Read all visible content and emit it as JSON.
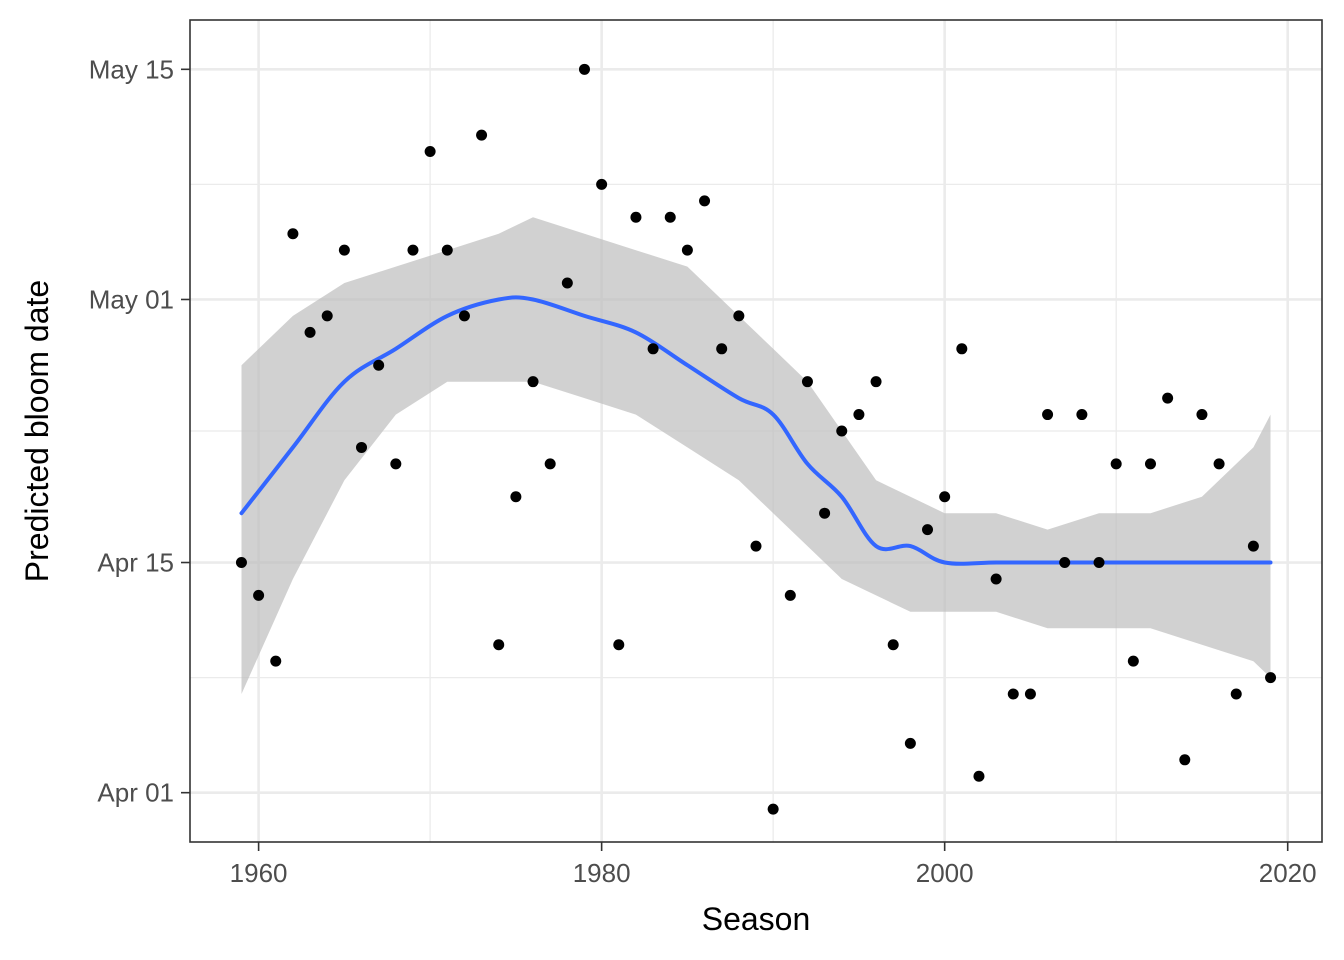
{
  "chart_data": {
    "type": "scatter",
    "title": "",
    "xlabel": "Season",
    "ylabel": "Predicted bloom date",
    "x_range": [
      1956,
      2022
    ],
    "y_range": [
      "1999-03-29",
      "1999-05-18"
    ],
    "x_ticks": [
      1960,
      1980,
      2000,
      2020
    ],
    "x_tick_labels": [
      "1960",
      "1980",
      "2000",
      "2020"
    ],
    "x_minor_ticks": [
      1970,
      1990,
      2010
    ],
    "y_ticks": [
      "1999-04-01",
      "1999-04-15",
      "1999-05-01",
      "1999-05-15"
    ],
    "y_tick_labels": [
      "Apr 01",
      "Apr 15",
      "May 01",
      "May 15"
    ],
    "y_minor_ticks": [
      "1999-04-08",
      "1999-04-23",
      "1999-05-08"
    ],
    "grid": true,
    "colors": {
      "points": "#000000",
      "smooth_line": "#3366ff",
      "confidence_band": "#bebebe",
      "grid": "#ebebeb",
      "panel_border": "#333333"
    },
    "series": [
      {
        "type": "points",
        "x": [
          1959,
          1960,
          1961,
          1962,
          1963,
          1964,
          1965,
          1966,
          1967,
          1968,
          1969,
          1970,
          1971,
          1972,
          1973,
          1974,
          1975,
          1976,
          1977,
          1978,
          1979,
          1980,
          1981,
          1982,
          1983,
          1984,
          1985,
          1986,
          1987,
          1988,
          1989,
          1990,
          1991,
          1992,
          1993,
          1994,
          1995,
          1996,
          1997,
          1998,
          1999,
          2000,
          2001,
          2002,
          2003,
          2004,
          2005,
          2006,
          2007,
          2008,
          2009,
          2010,
          2011,
          2012,
          2013,
          2014,
          2015,
          2016,
          2017,
          2018,
          2019
        ],
        "y": [
          "1999-04-15",
          "1999-04-13",
          "1999-04-09",
          "1999-05-05",
          "1999-04-29",
          "1999-04-30",
          "1999-05-04",
          "1999-04-22",
          "1999-04-27",
          "1999-04-21",
          "1999-05-04",
          "1999-05-10",
          "1999-05-04",
          "1999-04-30",
          "1999-05-11",
          "1999-04-10",
          "1999-04-19",
          "1999-04-26",
          "1999-04-21",
          "1999-05-02",
          "1999-05-15",
          "1999-05-08",
          "1999-04-10",
          "1999-05-06",
          "1999-04-28",
          "1999-05-06",
          "1999-05-04",
          "1999-05-07",
          "1999-04-28",
          "1999-04-30",
          "1999-04-16",
          "1999-03-31",
          "1999-04-13",
          "1999-04-26",
          "1999-04-18",
          "1999-04-23",
          "1999-04-24",
          "1999-04-26",
          "1999-04-10",
          "1999-04-04",
          "1999-04-17",
          "1999-04-19",
          "1999-04-28",
          "1999-04-02",
          "1999-04-14",
          "1999-04-07",
          "1999-04-07",
          "1999-04-24",
          "1999-04-15",
          "1999-04-24",
          "1999-04-15",
          "1999-04-21",
          "1999-04-09",
          "1999-04-21",
          "1999-04-25",
          "1999-04-03",
          "1999-04-24",
          "1999-04-21",
          "1999-04-07",
          "1999-04-16",
          "1999-04-08"
        ]
      },
      {
        "type": "smooth",
        "method": "loess",
        "x": [
          1959,
          1962,
          1965,
          1968,
          1971,
          1974,
          1976,
          1979,
          1982,
          1985,
          1988,
          1990,
          1992,
          1994,
          1996,
          1998,
          2000,
          2003,
          2006,
          2009,
          2012,
          2015,
          2018,
          2019
        ],
        "y": [
          "1999-04-18",
          "1999-04-22",
          "1999-04-26",
          "1999-04-28",
          "1999-04-30",
          "1999-05-01",
          "1999-05-01",
          "1999-04-30",
          "1999-04-29",
          "1999-04-27",
          "1999-04-25",
          "1999-04-24",
          "1999-04-21",
          "1999-04-19",
          "1999-04-16",
          "1999-04-16",
          "1999-04-15",
          "1999-04-15",
          "1999-04-15",
          "1999-04-15",
          "1999-04-15",
          "1999-04-15",
          "1999-04-15",
          "1999-04-15"
        ],
        "ci_low": [
          "1999-04-07",
          "1999-04-14",
          "1999-04-20",
          "1999-04-24",
          "1999-04-26",
          "1999-04-26",
          "1999-04-26",
          "1999-04-25",
          "1999-04-24",
          "1999-04-22",
          "1999-04-20",
          "1999-04-18",
          "1999-04-16",
          "1999-04-14",
          "1999-04-13",
          "1999-04-12",
          "1999-04-12",
          "1999-04-12",
          "1999-04-11",
          "1999-04-11",
          "1999-04-11",
          "1999-04-10",
          "1999-04-09",
          "1999-04-08"
        ],
        "ci_high": [
          "1999-04-27",
          "1999-04-30",
          "1999-05-02",
          "1999-05-03",
          "1999-05-04",
          "1999-05-05",
          "1999-05-06",
          "1999-05-05",
          "1999-05-04",
          "1999-05-03",
          "1999-04-30",
          "1999-04-28",
          "1999-04-26",
          "1999-04-23",
          "1999-04-20",
          "1999-04-19",
          "1999-04-18",
          "1999-04-18",
          "1999-04-17",
          "1999-04-18",
          "1999-04-18",
          "1999-04-19",
          "1999-04-22",
          "1999-04-24"
        ]
      }
    ]
  }
}
